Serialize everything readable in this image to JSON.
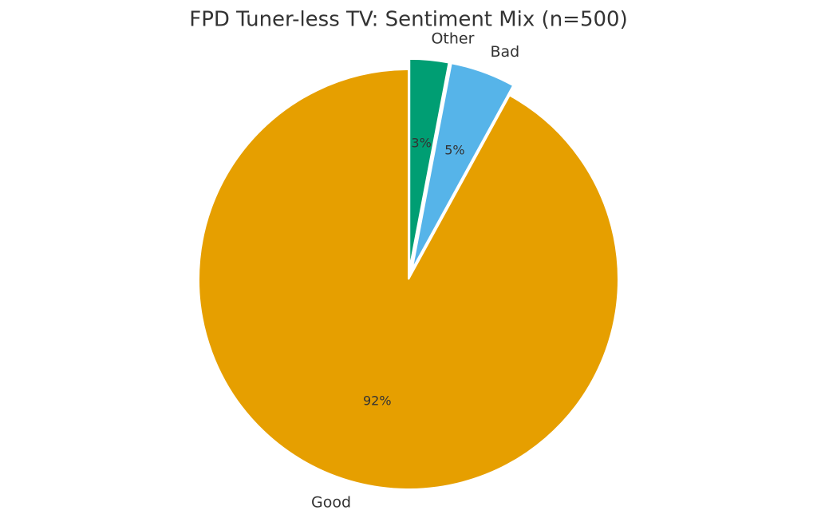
{
  "chart_data": {
    "type": "pie",
    "title": "FPD Tuner-less TV: Sentiment Mix (n=500)",
    "categories": [
      "Good",
      "Bad",
      "Other"
    ],
    "values": [
      92,
      5,
      3
    ],
    "value_labels": [
      "92%",
      "5%",
      "3%"
    ],
    "colors": [
      "#E69F00",
      "#56B4E9",
      "#009E73"
    ],
    "explode": [
      0,
      0.05,
      0.05
    ],
    "start_angle": 90,
    "direction": "counterclockwise"
  }
}
